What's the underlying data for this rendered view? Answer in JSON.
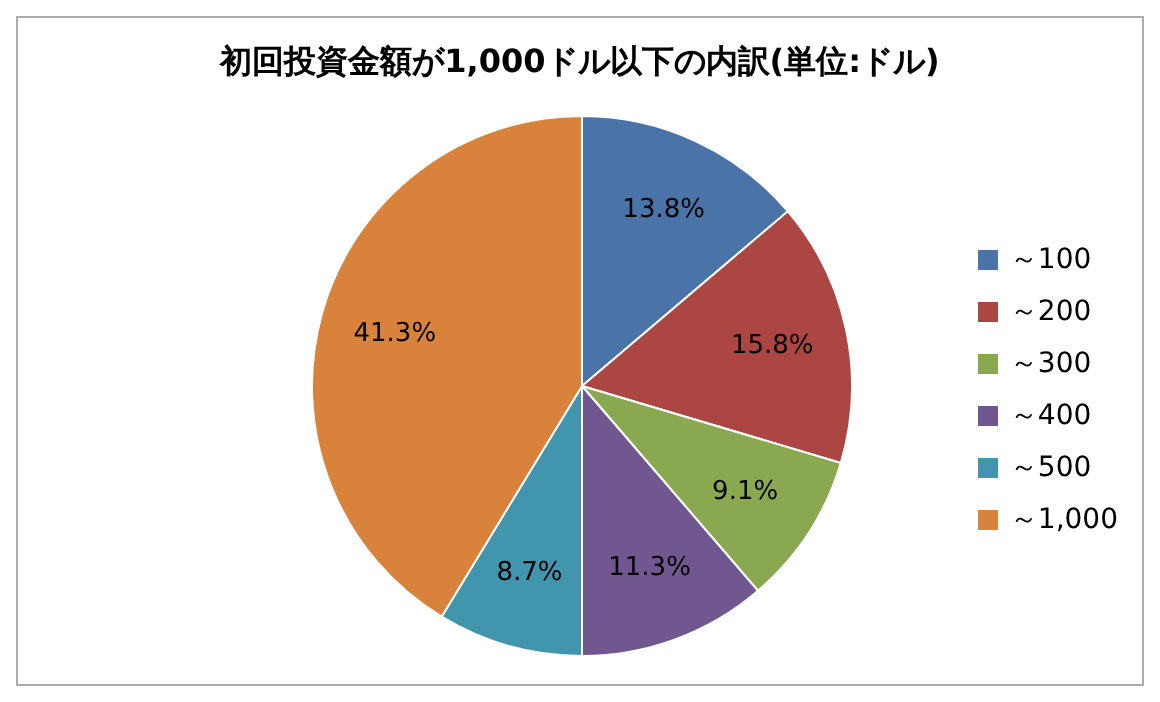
{
  "chart_data": {
    "type": "pie",
    "title": "初回投資金額が1,000ドル以下の内訳(単位:ドル)",
    "categories": [
      "～100",
      "～200",
      "～300",
      "～400",
      "～500",
      "～1,000"
    ],
    "values": [
      13.8,
      15.8,
      9.1,
      11.3,
      8.7,
      41.3
    ],
    "colors": [
      "#4a73a8",
      "#ab4643",
      "#8aa84f",
      "#70578f",
      "#4196ad",
      "#d9823c"
    ],
    "value_labels": [
      "13.8%",
      "15.8%",
      "9.1%",
      "11.3%",
      "8.7%",
      "41.3%"
    ],
    "legend": "right"
  }
}
